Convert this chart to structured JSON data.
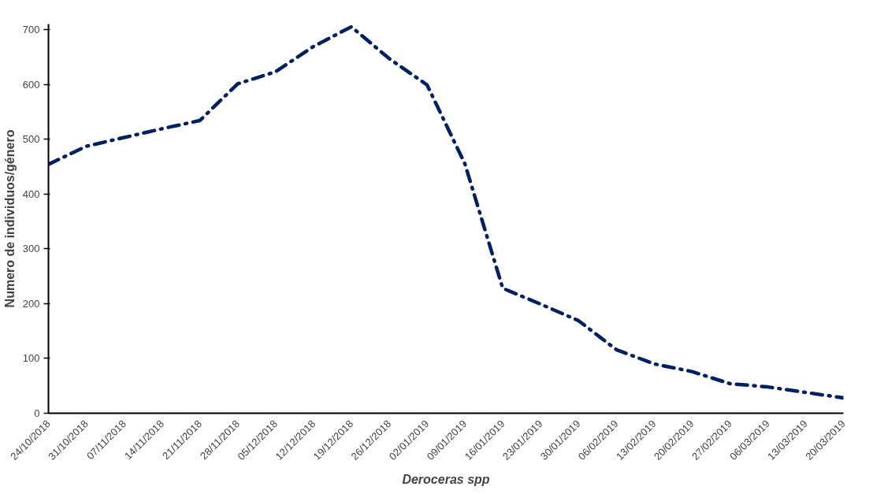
{
  "chart_data": {
    "type": "line",
    "xlabel": "Deroceras spp",
    "ylabel": "Numero de individuos/género",
    "categories": [
      "24/10/2018",
      "31/10/2018",
      "07/11/2018",
      "14/11/2018",
      "21/11/2018",
      "28/11/2018",
      "05/12/2018",
      "12/12/2018",
      "19/12/2018",
      "26/12/2018",
      "02/01/2019",
      "09/01/2019",
      "16/01/2019",
      "23/01/2019",
      "30/01/2019",
      "06/02/2019",
      "13/02/2019",
      "20/02/2019",
      "27/02/2019",
      "06/03/2019",
      "13/03/2019",
      "20/03/2019"
    ],
    "series": [
      {
        "color": "#002060",
        "values": [
          454,
          487,
          503,
          519,
          534,
          601,
          623,
          669,
          705,
          647,
          599,
          455,
          228,
          199,
          169,
          116,
          90,
          76,
          54,
          48,
          38,
          28
        ]
      }
    ],
    "ylim": [
      0,
      710
    ],
    "yticks": [
      0,
      100,
      200,
      300,
      400,
      500,
      600,
      700
    ],
    "grid": false,
    "marker": "none",
    "line_style": "dashdot"
  }
}
